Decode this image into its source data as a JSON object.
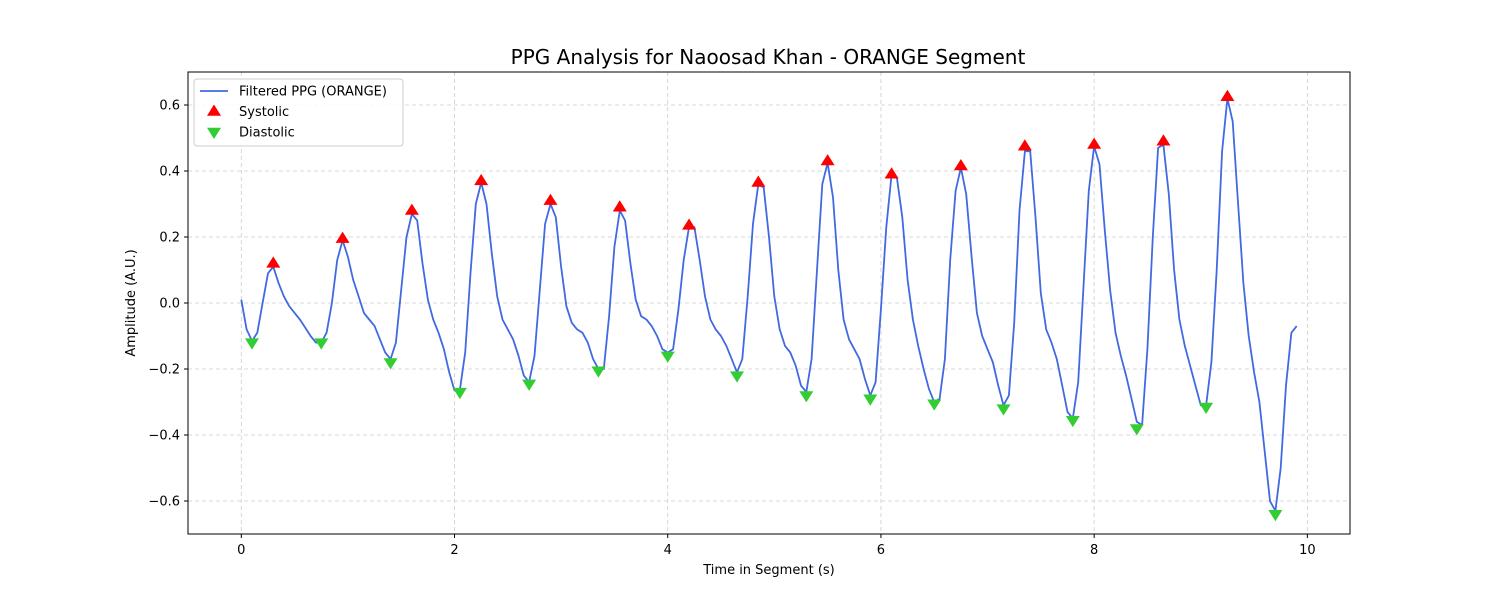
{
  "chart_data": {
    "type": "line",
    "title": "PPG Analysis for Naoosad Khan - ORANGE Segment",
    "xlabel": "Time in Segment (s)",
    "ylabel": "Amplitude (A.U.)",
    "xlim": [
      -0.5,
      10.4
    ],
    "ylim": [
      -0.7,
      0.7
    ],
    "xticks": [
      0,
      2,
      4,
      6,
      8,
      10
    ],
    "yticks": [
      -0.6,
      -0.4,
      -0.2,
      0.0,
      0.2,
      0.4,
      0.6
    ],
    "xtick_labels": [
      "0",
      "2",
      "4",
      "6",
      "8",
      "10"
    ],
    "ytick_labels": [
      "−0.6",
      "−0.4",
      "−0.2",
      "0.0",
      "0.2",
      "0.4",
      "0.6"
    ],
    "grid": true,
    "legend_position": "top-left",
    "series": [
      {
        "name": "Filtered PPG (ORANGE)",
        "kind": "line",
        "color": "#4169e1",
        "x": [
          0.0,
          0.05,
          0.1,
          0.15,
          0.2,
          0.25,
          0.3,
          0.35,
          0.4,
          0.45,
          0.5,
          0.55,
          0.6,
          0.65,
          0.7,
          0.75,
          0.8,
          0.85,
          0.9,
          0.95,
          1.0,
          1.05,
          1.1,
          1.15,
          1.2,
          1.25,
          1.3,
          1.35,
          1.4,
          1.45,
          1.5,
          1.55,
          1.6,
          1.65,
          1.7,
          1.75,
          1.8,
          1.85,
          1.9,
          1.95,
          2.0,
          2.05,
          2.1,
          2.15,
          2.2,
          2.25,
          2.3,
          2.35,
          2.4,
          2.45,
          2.5,
          2.55,
          2.6,
          2.65,
          2.7,
          2.75,
          2.8,
          2.85,
          2.9,
          2.95,
          3.0,
          3.05,
          3.1,
          3.15,
          3.2,
          3.25,
          3.3,
          3.35,
          3.4,
          3.45,
          3.5,
          3.55,
          3.6,
          3.65,
          3.7,
          3.75,
          3.8,
          3.85,
          3.9,
          3.95,
          4.0,
          4.05,
          4.1,
          4.15,
          4.2,
          4.25,
          4.3,
          4.35,
          4.4,
          4.45,
          4.5,
          4.55,
          4.6,
          4.65,
          4.7,
          4.75,
          4.8,
          4.85,
          4.9,
          4.95,
          5.0,
          5.05,
          5.1,
          5.15,
          5.2,
          5.25,
          5.3,
          5.35,
          5.4,
          5.45,
          5.5,
          5.55,
          5.6,
          5.65,
          5.7,
          5.75,
          5.8,
          5.85,
          5.9,
          5.95,
          6.0,
          6.05,
          6.1,
          6.15,
          6.2,
          6.25,
          6.3,
          6.35,
          6.4,
          6.45,
          6.5,
          6.55,
          6.6,
          6.65,
          6.7,
          6.75,
          6.8,
          6.85,
          6.9,
          6.95,
          7.0,
          7.05,
          7.1,
          7.15,
          7.2,
          7.25,
          7.3,
          7.35,
          7.4,
          7.45,
          7.5,
          7.55,
          7.6,
          7.65,
          7.7,
          7.75,
          7.8,
          7.85,
          7.9,
          7.95,
          8.0,
          8.05,
          8.1,
          8.15,
          8.2,
          8.25,
          8.3,
          8.35,
          8.4,
          8.45,
          8.5,
          8.55,
          8.6,
          8.65,
          8.7,
          8.75,
          8.8,
          8.85,
          8.9,
          8.95,
          9.0,
          9.05,
          9.1,
          9.15,
          9.2,
          9.25,
          9.3,
          9.35,
          9.4,
          9.45,
          9.5,
          9.55,
          9.6,
          9.65,
          9.7,
          9.75,
          9.8,
          9.85,
          9.9
        ],
        "y": [
          0.01,
          -0.08,
          -0.115,
          -0.09,
          0.0,
          0.09,
          0.11,
          0.06,
          0.02,
          -0.01,
          -0.03,
          -0.05,
          -0.075,
          -0.1,
          -0.12,
          -0.12,
          -0.09,
          0.0,
          0.13,
          0.19,
          0.14,
          0.07,
          0.02,
          -0.03,
          -0.05,
          -0.07,
          -0.11,
          -0.15,
          -0.17,
          -0.12,
          0.04,
          0.2,
          0.27,
          0.25,
          0.12,
          0.01,
          -0.05,
          -0.09,
          -0.14,
          -0.21,
          -0.265,
          -0.265,
          -0.15,
          0.09,
          0.3,
          0.365,
          0.3,
          0.15,
          0.02,
          -0.05,
          -0.08,
          -0.11,
          -0.16,
          -0.22,
          -0.24,
          -0.16,
          0.04,
          0.24,
          0.3,
          0.26,
          0.11,
          -0.01,
          -0.06,
          -0.08,
          -0.09,
          -0.12,
          -0.17,
          -0.2,
          -0.2,
          -0.04,
          0.17,
          0.28,
          0.25,
          0.12,
          0.01,
          -0.04,
          -0.05,
          -0.07,
          -0.1,
          -0.14,
          -0.15,
          -0.14,
          -0.02,
          0.13,
          0.23,
          0.23,
          0.13,
          0.02,
          -0.05,
          -0.08,
          -0.1,
          -0.13,
          -0.17,
          -0.21,
          -0.17,
          0.02,
          0.24,
          0.36,
          0.35,
          0.2,
          0.02,
          -0.08,
          -0.13,
          -0.15,
          -0.19,
          -0.25,
          -0.27,
          -0.17,
          0.1,
          0.36,
          0.425,
          0.32,
          0.1,
          -0.05,
          -0.11,
          -0.14,
          -0.17,
          -0.23,
          -0.28,
          -0.24,
          -0.02,
          0.23,
          0.39,
          0.38,
          0.26,
          0.07,
          -0.05,
          -0.13,
          -0.2,
          -0.26,
          -0.3,
          -0.29,
          -0.17,
          0.13,
          0.34,
          0.41,
          0.33,
          0.14,
          -0.03,
          -0.1,
          -0.14,
          -0.18,
          -0.25,
          -0.31,
          -0.28,
          -0.06,
          0.28,
          0.46,
          0.46,
          0.26,
          0.03,
          -0.08,
          -0.12,
          -0.17,
          -0.25,
          -0.33,
          -0.35,
          -0.24,
          0.05,
          0.34,
          0.475,
          0.42,
          0.22,
          0.04,
          -0.09,
          -0.16,
          -0.22,
          -0.29,
          -0.36,
          -0.37,
          -0.14,
          0.2,
          0.47,
          0.48,
          0.33,
          0.1,
          -0.05,
          -0.13,
          -0.19,
          -0.25,
          -0.31,
          -0.31,
          -0.18,
          0.1,
          0.46,
          0.62,
          0.55,
          0.3,
          0.06,
          -0.1,
          -0.21,
          -0.3,
          -0.45,
          -0.6,
          -0.63,
          -0.5,
          -0.25,
          -0.09,
          -0.07
        ]
      },
      {
        "name": "Systolic",
        "kind": "marker-up",
        "color": "#ff0000",
        "x": [
          0.3,
          0.95,
          1.6,
          2.25,
          2.9,
          3.55,
          4.2,
          4.85,
          5.5,
          6.1,
          6.75,
          7.35,
          8.0,
          8.65,
          9.25
        ],
        "y": [
          0.12,
          0.195,
          0.28,
          0.37,
          0.31,
          0.29,
          0.235,
          0.365,
          0.43,
          0.39,
          0.415,
          0.475,
          0.48,
          0.49,
          0.625
        ]
      },
      {
        "name": "Diastolic",
        "kind": "marker-down",
        "color": "#32cd32",
        "x": [
          0.1,
          0.75,
          1.4,
          2.05,
          2.7,
          3.35,
          4.0,
          4.65,
          5.3,
          5.9,
          6.5,
          7.15,
          7.8,
          8.4,
          9.05,
          9.7
        ],
        "y": [
          -0.12,
          -0.12,
          -0.18,
          -0.27,
          -0.245,
          -0.205,
          -0.16,
          -0.22,
          -0.28,
          -0.29,
          -0.305,
          -0.32,
          -0.355,
          -0.38,
          -0.315,
          -0.64
        ]
      }
    ]
  }
}
